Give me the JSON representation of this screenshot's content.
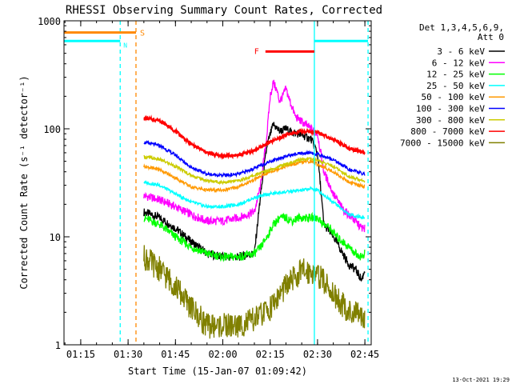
{
  "chart_data": {
    "type": "line",
    "title": "RHESSI Observing Summary Count Rates, Corrected",
    "xlabel": "Start Time (15-Jan-07 01:09:42)",
    "ylabel": "Corrected Count Rate (s⁻¹ detector⁻¹)",
    "x_ticks": [
      "01:15",
      "01:30",
      "01:45",
      "02:00",
      "02:15",
      "02:30",
      "02:45"
    ],
    "x_tick_minutes": [
      75,
      90,
      105,
      120,
      135,
      150,
      165
    ],
    "xlim_minutes": [
      69.7,
      167.0
    ],
    "y_scale": "log",
    "ylim": [
      1,
      1000
    ],
    "y_ticks": [
      "1",
      "10",
      "100",
      "1000"
    ],
    "y_tick_values": [
      1,
      10,
      100,
      1000
    ],
    "legend_position": "right",
    "legend_header": [
      "Det 1,3,4,5,6,9,",
      "Att 0"
    ],
    "series": [
      {
        "name": "3 - 6 keV",
        "color": "#000000",
        "x": [
          95,
          100,
          105,
          110,
          115,
          120,
          125,
          130,
          132,
          134,
          136,
          138,
          140,
          142,
          144,
          146,
          148,
          150,
          152,
          154,
          156,
          158,
          160,
          162,
          164,
          165
        ],
        "y": [
          17,
          15,
          12,
          9,
          7,
          6.5,
          6.5,
          7,
          25,
          70,
          110,
          95,
          100,
          92,
          90,
          85,
          80,
          60,
          13,
          11,
          9,
          7,
          5.5,
          5,
          4,
          5
        ]
      },
      {
        "name": "6 - 12 keV",
        "color": "#ff00ff",
        "x": [
          95,
          100,
          105,
          110,
          115,
          120,
          125,
          130,
          132,
          134,
          135,
          136,
          137,
          138,
          139,
          140,
          141,
          143,
          146,
          148,
          150,
          152,
          155,
          158,
          161,
          164,
          165
        ],
        "y": [
          24,
          22,
          19,
          16,
          14,
          14,
          15,
          17,
          30,
          90,
          200,
          270,
          230,
          180,
          200,
          235,
          190,
          130,
          110,
          100,
          90,
          40,
          25,
          18,
          15,
          12,
          12
        ]
      },
      {
        "name": "12 - 25 keV",
        "color": "#00ff00",
        "x": [
          95,
          100,
          105,
          110,
          115,
          120,
          125,
          130,
          132,
          134,
          136,
          138,
          140,
          142,
          144,
          146,
          148,
          150,
          152,
          154,
          156,
          158,
          160,
          162,
          164,
          165
        ],
        "y": [
          15,
          13,
          10,
          8,
          7,
          6.5,
          6.5,
          7,
          8,
          10,
          13,
          15,
          15,
          14,
          15,
          15,
          15,
          15,
          13,
          12,
          10,
          9,
          8,
          7,
          6.5,
          7
        ]
      },
      {
        "name": "25 - 50 keV",
        "color": "#00ffff",
        "x": [
          95,
          100,
          105,
          110,
          115,
          120,
          125,
          130,
          135,
          140,
          145,
          148,
          150,
          155,
          160,
          165
        ],
        "y": [
          32,
          30,
          25,
          21,
          19,
          19,
          20,
          23,
          25,
          26,
          27,
          28,
          27,
          21,
          16,
          15
        ]
      },
      {
        "name": "50 - 100 keV",
        "color": "#ff9900",
        "x": [
          95,
          100,
          105,
          110,
          115,
          120,
          125,
          130,
          135,
          140,
          145,
          148,
          150,
          155,
          160,
          165
        ],
        "y": [
          45,
          42,
          35,
          29,
          27,
          27,
          29,
          34,
          40,
          45,
          49,
          50,
          47,
          40,
          32,
          29
        ]
      },
      {
        "name": "100 - 300 keV",
        "color": "#0000ff",
        "x": [
          95,
          100,
          105,
          110,
          115,
          120,
          125,
          130,
          135,
          140,
          145,
          148,
          150,
          155,
          160,
          165
        ],
        "y": [
          75,
          70,
          57,
          44,
          38,
          37,
          38,
          43,
          50,
          56,
          59,
          60,
          58,
          52,
          42,
          38
        ]
      },
      {
        "name": "300 - 800 keV",
        "color": "#cccc00",
        "x": [
          95,
          100,
          105,
          110,
          115,
          120,
          125,
          130,
          135,
          140,
          145,
          148,
          150,
          155,
          160,
          165
        ],
        "y": [
          55,
          52,
          45,
          37,
          33,
          32,
          33,
          37,
          42,
          47,
          52,
          53,
          51,
          45,
          36,
          33
        ]
      },
      {
        "name": "800 - 7000 keV",
        "color": "#ff0000",
        "x": [
          95,
          100,
          105,
          110,
          115,
          120,
          125,
          130,
          135,
          140,
          145,
          150,
          155,
          160,
          165
        ],
        "y": [
          125,
          120,
          95,
          72,
          60,
          56,
          57,
          63,
          75,
          88,
          95,
          93,
          80,
          65,
          60
        ]
      },
      {
        "name": "7000 - 15000 keV",
        "color": "#808000",
        "x": [
          95,
          100,
          105,
          110,
          115,
          120,
          125,
          130,
          135,
          140,
          145,
          148,
          150,
          155,
          160,
          165
        ],
        "y": [
          6.5,
          5,
          3.5,
          2.2,
          1.5,
          1.5,
          1.5,
          1.7,
          2.2,
          3.5,
          4.8,
          4.8,
          4.5,
          3,
          2,
          1.8
        ]
      }
    ],
    "state_bars": [
      {
        "label": "S",
        "color": "#ff8800",
        "x_start": 69.7,
        "x_end": 92.5,
        "level": 780
      },
      {
        "label": "N",
        "color": "#00ffff",
        "x_start": 69.7,
        "x_end": 87.5,
        "level": 650
      },
      {
        "label": "F",
        "color": "#ff0000",
        "x_start": 133.5,
        "x_end": 149.0,
        "level": 520
      },
      {
        "label": "",
        "color": "#00ffff",
        "x_start": 149.0,
        "x_end": 166.0,
        "level": 650
      }
    ],
    "vertical_markers": [
      {
        "x": 87.5,
        "color": "#00ffff",
        "style": "dashed"
      },
      {
        "x": 92.5,
        "color": "#ff8800",
        "style": "dashed"
      },
      {
        "x": 149.0,
        "color": "#00ffff",
        "style": "solid"
      },
      {
        "x": 166.0,
        "color": "#00ffff",
        "style": "dashed"
      }
    ],
    "footer_timestamp": "13-Oct-2021 19:29"
  }
}
